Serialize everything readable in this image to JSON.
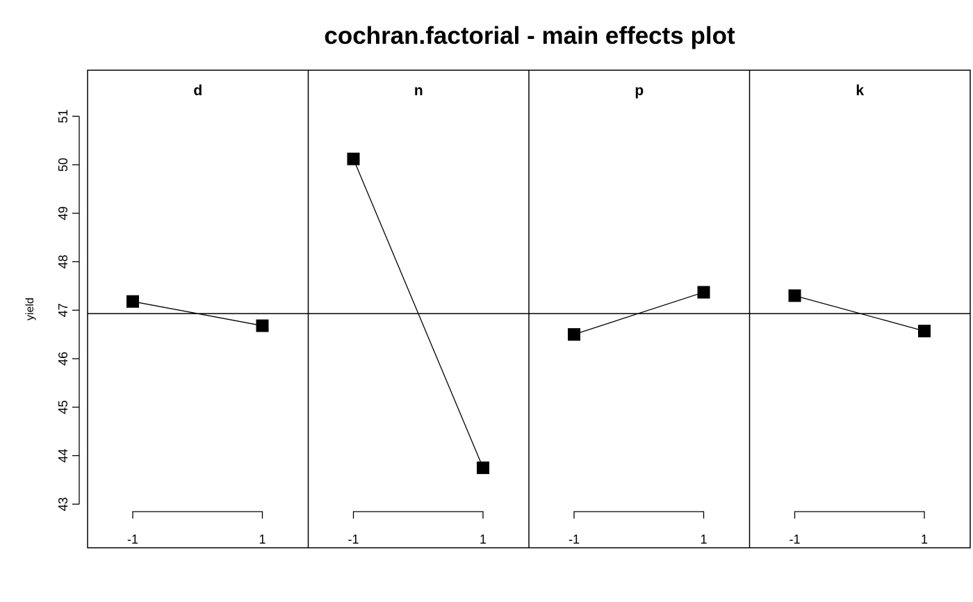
{
  "chart_data": {
    "type": "line",
    "title": "cochran.factorial - main effects plot",
    "ylabel": "yield",
    "ylim": [
      42.1,
      51.95
    ],
    "yticks": [
      43,
      44,
      45,
      46,
      47,
      48,
      49,
      50,
      51
    ],
    "x_levels": [
      "-1",
      "1"
    ],
    "grand_mean": 46.93,
    "grid": false,
    "legend": "none",
    "marker": "filled-square",
    "colors": {
      "line": "#000000",
      "marker": "#000000",
      "frame": "#000000"
    },
    "panels": [
      {
        "name": "d",
        "x": [
          "-1",
          "1"
        ],
        "y": [
          47.18,
          46.68
        ]
      },
      {
        "name": "n",
        "x": [
          "-1",
          "1"
        ],
        "y": [
          50.12,
          43.75
        ]
      },
      {
        "name": "p",
        "x": [
          "-1",
          "1"
        ],
        "y": [
          46.5,
          47.37
        ]
      },
      {
        "name": "k",
        "x": [
          "-1",
          "1"
        ],
        "y": [
          47.3,
          46.57
        ]
      }
    ]
  }
}
